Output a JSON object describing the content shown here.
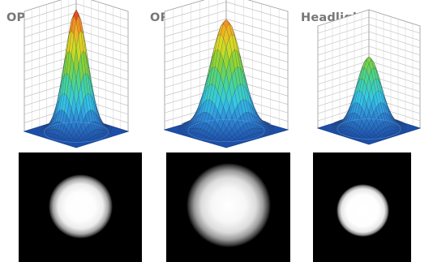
{
  "panels": [
    {
      "label": "OPELAIII"
    },
    {
      "label": "OR Light"
    },
    {
      "label": "Headlight"
    }
  ],
  "colors": {
    "label_text": "#777777",
    "floor": "#1d4fa8",
    "peak": "#e6261d",
    "spot_background": "#000000"
  },
  "surface_colormap": [
    "#1d4fa8",
    "#2e86d4",
    "#35c9e6",
    "#48d494",
    "#84d23a",
    "#d9dc24",
    "#f5a623",
    "#e6261d"
  ]
}
